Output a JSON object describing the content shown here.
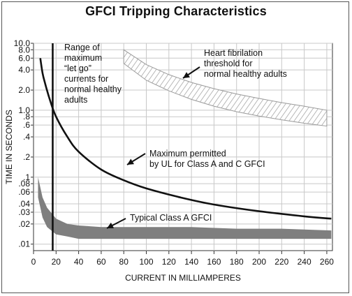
{
  "chart_data": {
    "type": "line",
    "title": "GFCI Tripping Characteristics",
    "xlabel": "CURRENT IN MILLIAMPERES",
    "ylabel": "TIME IN SECONDS",
    "xlim": [
      0,
      265
    ],
    "ylim": [
      0.008,
      10.0
    ],
    "yscale": "log",
    "grid": true,
    "xticks": [
      "0",
      "20",
      "40",
      "60",
      "80",
      "100",
      "120",
      "140",
      "160",
      "180",
      "200",
      "220",
      "240",
      "260"
    ],
    "yticks": [
      "10.0",
      "8.0",
      "6.0",
      "4.0",
      "2.0",
      "1.0",
      ".8",
      ".6",
      ".4",
      ".2",
      ".1",
      ".08",
      ".06",
      ".04",
      ".03",
      ".02",
      ".01"
    ],
    "series": [
      {
        "x": [
          6,
          8,
          10,
          15,
          20,
          30,
          40,
          60,
          80,
          100,
          130,
          160,
          200,
          240,
          264
        ],
        "y": [
          6.0,
          3.6,
          2.6,
          1.35,
          0.8,
          0.4,
          0.24,
          0.13,
          0.09,
          0.068,
          0.05,
          0.039,
          0.031,
          0.026,
          0.024
        ]
      }
    ],
    "bands": [
      {
        "x": [
          4,
          8,
          12,
          20,
          30,
          40,
          60,
          80,
          100,
          140,
          180,
          220,
          264
        ],
        "y_upper": [
          0.1,
          0.05,
          0.035,
          0.024,
          0.02,
          0.019,
          0.018,
          0.018,
          0.018,
          0.018,
          0.017,
          0.017,
          0.016
        ],
        "y_lower": [
          0.05,
          0.025,
          0.018,
          0.014,
          0.013,
          0.012,
          0.012,
          0.012,
          0.012,
          0.012,
          0.012,
          0.012,
          0.012
        ]
      },
      {
        "x": [
          80,
          100,
          120,
          140,
          160,
          180,
          200,
          220,
          240,
          260
        ],
        "y_upper": [
          8.0,
          4.8,
          3.4,
          2.6,
          2.1,
          1.75,
          1.5,
          1.3,
          1.15,
          1.0
        ],
        "y_lower": [
          5.0,
          2.8,
          1.95,
          1.45,
          1.15,
          0.95,
          0.82,
          0.72,
          0.64,
          0.58
        ]
      }
    ],
    "vertical_line": {
      "x": 17
    },
    "annotations": [
      {
        "lines": [
          "Range of",
          "maximum",
          "“let go”",
          "currents for",
          "normal healthy",
          "adults"
        ]
      },
      {
        "lines": [
          "Heart fibrilation",
          "threshold for",
          "normal healthy adults"
        ]
      },
      {
        "lines": [
          "Maximum permitted",
          "by UL for Class A and C GFCI"
        ]
      },
      {
        "lines": [
          "Typical Class A GFCI"
        ]
      }
    ],
    "colors": {
      "curve": "#111111",
      "band": "#7f7f7f",
      "hatch": "#9a9a9a",
      "grid": "#c8c8c8"
    }
  }
}
